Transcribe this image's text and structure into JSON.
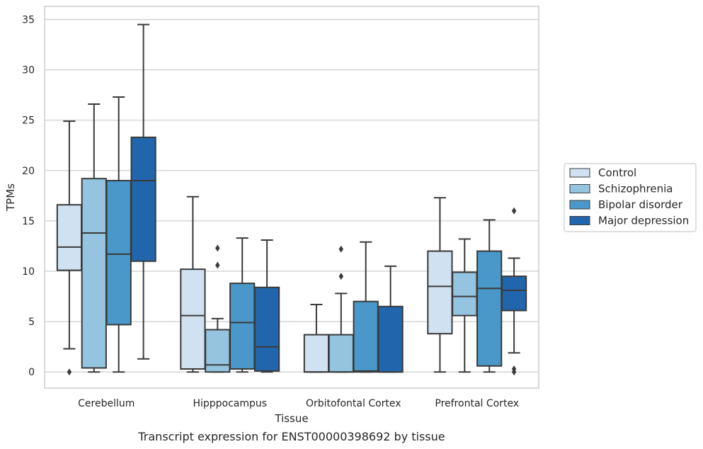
{
  "caption": "Transcript expression for ENST00000398692 by tissue",
  "chart_data": {
    "type": "box",
    "xlabel": "Tissue",
    "ylabel": "TPMs",
    "ylim": [
      -1.6,
      36.3
    ],
    "yticks": [
      0,
      5,
      10,
      15,
      20,
      25,
      30,
      35
    ],
    "grid": "horizontal",
    "legend_position": "right",
    "categories": [
      "Cerebellum",
      "Hipppocampus",
      "Orbitofontal Cortex",
      "Prefrontal Cortex"
    ],
    "series": [
      {
        "name": "Control",
        "color": "#d0e1f2",
        "boxes": [
          {
            "whislo": 2.3,
            "q1": 10.1,
            "med": 12.4,
            "q3": 16.6,
            "whishi": 24.9,
            "fliers": [
              0.0
            ]
          },
          {
            "whislo": 0.0,
            "q1": 0.3,
            "med": 5.6,
            "q3": 10.2,
            "whishi": 17.4,
            "fliers": []
          },
          {
            "whislo": 0.0,
            "q1": 0.0,
            "med": 0.0,
            "q3": 3.7,
            "whishi": 6.7,
            "fliers": []
          },
          {
            "whislo": 0.0,
            "q1": 3.8,
            "med": 8.5,
            "q3": 12.0,
            "whishi": 17.3,
            "fliers": []
          }
        ]
      },
      {
        "name": "Schizophrenia",
        "color": "#94c4df",
        "boxes": [
          {
            "whislo": 0.0,
            "q1": 0.4,
            "med": 13.8,
            "q3": 19.2,
            "whishi": 26.6,
            "fliers": []
          },
          {
            "whislo": 0.0,
            "q1": 0.0,
            "med": 0.7,
            "q3": 4.2,
            "whishi": 5.3,
            "fliers": [
              10.6,
              12.3
            ]
          },
          {
            "whislo": 0.0,
            "q1": 0.0,
            "med": 0.0,
            "q3": 3.7,
            "whishi": 7.8,
            "fliers": [
              9.5,
              12.2
            ]
          },
          {
            "whislo": 0.0,
            "q1": 5.6,
            "med": 7.5,
            "q3": 9.9,
            "whishi": 13.2,
            "fliers": []
          }
        ]
      },
      {
        "name": "Bipolar disorder",
        "color": "#4a98c9",
        "boxes": [
          {
            "whislo": 0.0,
            "q1": 4.7,
            "med": 11.7,
            "q3": 19.0,
            "whishi": 27.3,
            "fliers": []
          },
          {
            "whislo": 0.0,
            "q1": 0.3,
            "med": 4.9,
            "q3": 8.8,
            "whishi": 13.3,
            "fliers": []
          },
          {
            "whislo": 0.0,
            "q1": 0.0,
            "med": 0.1,
            "q3": 7.0,
            "whishi": 12.9,
            "fliers": []
          },
          {
            "whislo": 0.0,
            "q1": 0.6,
            "med": 8.3,
            "q3": 12.0,
            "whishi": 15.1,
            "fliers": []
          }
        ]
      },
      {
        "name": "Major depression",
        "color": "#2166ac",
        "boxes": [
          {
            "whislo": 1.3,
            "q1": 11.0,
            "med": 19.0,
            "q3": 23.3,
            "whishi": 34.5,
            "fliers": []
          },
          {
            "whislo": 0.0,
            "q1": 0.1,
            "med": 2.5,
            "q3": 8.4,
            "whishi": 13.1,
            "fliers": []
          },
          {
            "whislo": 0.0,
            "q1": 0.0,
            "med": 0.0,
            "q3": 6.5,
            "whishi": 10.5,
            "fliers": []
          },
          {
            "whislo": 1.9,
            "q1": 6.1,
            "med": 8.1,
            "q3": 9.5,
            "whishi": 11.3,
            "fliers": [
              0.0,
              0.3,
              16.0
            ]
          }
        ]
      }
    ]
  }
}
